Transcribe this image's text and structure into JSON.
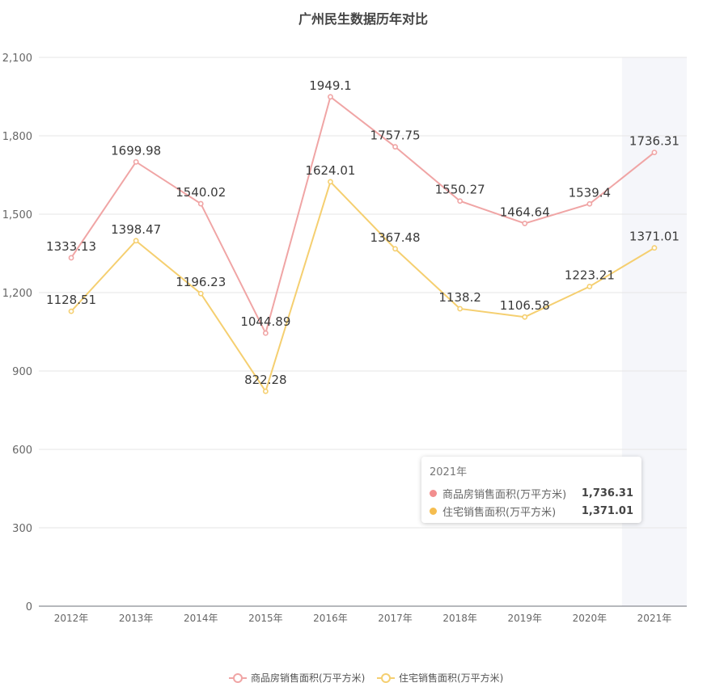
{
  "colors": {
    "series1": "#f0a5a5",
    "series2": "#f5cf70",
    "tooltip_dot1": "#f28e8e",
    "tooltip_dot2": "#f5bd4f",
    "highlight_band": "#f5f6fa",
    "grid": "#e6e6e6"
  },
  "chart_data": {
    "type": "line",
    "title": "广州民生数据历年对比",
    "xlabel": "",
    "ylabel": "",
    "categories": [
      "2012年",
      "2013年",
      "2014年",
      "2015年",
      "2016年",
      "2017年",
      "2018年",
      "2019年",
      "2020年",
      "2021年"
    ],
    "ylim": [
      0,
      2100
    ],
    "yticks": [
      0,
      300,
      600,
      900,
      1200,
      1500,
      1800,
      2100
    ],
    "ytick_labels": [
      "0",
      "300",
      "600",
      "900",
      "1,200",
      "1,500",
      "1,800",
      "2,100"
    ],
    "grid": true,
    "legend_position": "bottom",
    "highlighted_category": "2021年",
    "series": [
      {
        "name": "商品房销售面积(万平方米)",
        "values": [
          1333.13,
          1699.98,
          1540.02,
          1044.89,
          1949.1,
          1757.75,
          1550.27,
          1464.64,
          1539.4,
          1736.31
        ],
        "value_labels": [
          "1333.13",
          "1699.98",
          "1540.02",
          "1044.89",
          "1949.1",
          "1757.75",
          "1550.27",
          "1464.64",
          "1539.4",
          "1736.31"
        ]
      },
      {
        "name": "住宅销售面积(万平方米)",
        "values": [
          1128.51,
          1398.47,
          1196.23,
          822.28,
          1624.01,
          1367.48,
          1138.2,
          1106.58,
          1223.21,
          1371.01
        ],
        "value_labels": [
          "1128.51",
          "1398.47",
          "1196.23",
          "822.28",
          "1624.01",
          "1367.48",
          "1138.2",
          "1106.58",
          "1223.21",
          "1371.01"
        ]
      }
    ]
  },
  "tooltip": {
    "title": "2021年",
    "rows": [
      {
        "name": "商品房销售面积(万平方米)",
        "value": "1,736.31"
      },
      {
        "name": "住宅销售面积(万平方米)",
        "value": "1,371.01"
      }
    ]
  }
}
